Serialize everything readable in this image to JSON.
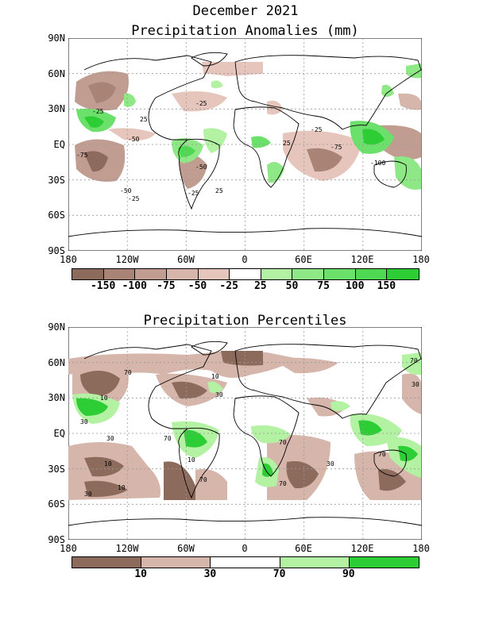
{
  "title": "December 2021",
  "panels": [
    {
      "title": "Precipitation Anomalies (mm)",
      "lat_labels": [
        "90N",
        "60N",
        "30N",
        "EQ",
        "30S",
        "60S",
        "90S"
      ],
      "lon_labels": [
        "180",
        "120W",
        "60W",
        "0",
        "60E",
        "120E",
        "180"
      ],
      "colorbar": {
        "colors": [
          "#8c6a5c",
          "#a98376",
          "#c19d91",
          "#d6b5aa",
          "#e6c6bc",
          "#ffffff",
          "#b3f2a3",
          "#8ee886",
          "#6be06a",
          "#4fd851",
          "#2dcd35"
        ],
        "tick_labels": [
          "-150",
          "-100",
          "-75",
          "-50",
          "-25",
          "25",
          "50",
          "75",
          "100",
          "150"
        ]
      },
      "contour_labels": [
        "-25",
        "-25",
        "-25",
        "-25",
        "-25",
        "-25",
        "-25",
        "-25",
        "-25",
        "-25",
        "-50",
        "-50",
        "-50",
        "-75",
        "-75",
        "-100",
        "25",
        "25",
        "25",
        "25",
        "25",
        "25"
      ]
    },
    {
      "title": "Precipitation Percentiles",
      "lat_labels": [
        "90N",
        "60N",
        "30N",
        "EQ",
        "30S",
        "60S",
        "90S"
      ],
      "lon_labels": [
        "180",
        "120W",
        "60W",
        "0",
        "60E",
        "120E",
        "180"
      ],
      "colorbar": {
        "colors": [
          "#8c6a5c",
          "#d6b5aa",
          "#ffffff",
          "#b3f2a3",
          "#2dcd35"
        ],
        "tick_labels": [
          "10",
          "30",
          "70",
          "90"
        ]
      },
      "contour_labels": [
        "10",
        "10",
        "10",
        "10",
        "10",
        "10",
        "30",
        "30",
        "30",
        "30",
        "30",
        "30",
        "30",
        "70",
        "70",
        "70",
        "70",
        "70",
        "70",
        "70"
      ]
    }
  ]
}
